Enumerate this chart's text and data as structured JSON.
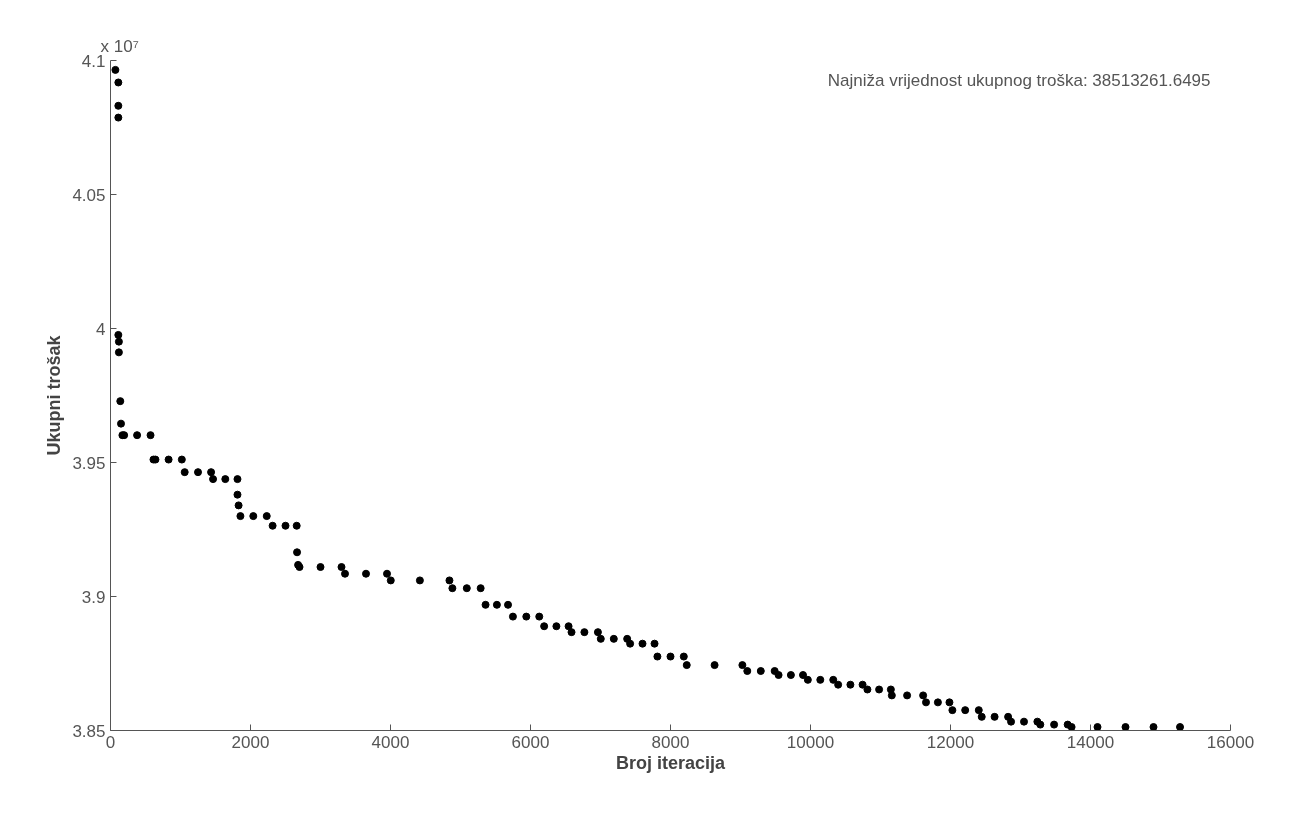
{
  "chart_data": {
    "type": "scatter",
    "xlabel": "Broj iteracija",
    "ylabel": "Ukupni trošak",
    "annotations": [
      "Najniža vrijednost ukupnog troška: 38513261.6495",
      "x 10⁷"
    ],
    "xlim": [
      0,
      16000
    ],
    "ylim": [
      3.85,
      4.1
    ],
    "xticks": [
      0,
      2000,
      4000,
      6000,
      8000,
      10000,
      12000,
      14000,
      16000
    ],
    "yticks": [
      3.85,
      3.9,
      3.95,
      4,
      4.05,
      4.1
    ],
    "grid": false,
    "marker": "circle",
    "series": [
      {
        "color": "#000000",
        "x": [
          70,
          112,
          112,
          112,
          112,
          120,
          120,
          140,
          150,
          170,
          195,
          380,
          572,
          614,
          642,
          830,
          1019,
          1060,
          1250,
          1437,
          1465,
          1640,
          1814,
          1814,
          1830,
          1856,
          2040,
          2232,
          2316,
          2500,
          2660,
          2665,
          2680,
          2700,
          3000,
          3300,
          3350,
          3650,
          3950,
          4004,
          4420,
          4842,
          4884,
          5090,
          5288,
          5358,
          5520,
          5679,
          5749,
          5940,
          6125,
          6195,
          6370,
          6544,
          6586,
          6770,
          6963,
          7004,
          7190,
          7381,
          7423,
          7600,
          7772,
          7813,
          8000,
          8190,
          8232,
          8630,
          9027,
          9097,
          9290,
          9488,
          9544,
          9720,
          9893,
          9962,
          10140,
          10325,
          10395,
          10570,
          10744,
          10813,
          10980,
          11148,
          11162,
          11380,
          11609,
          11650,
          11820,
          11985,
          12027,
          12210,
          12404,
          12446,
          12630,
          12823,
          12865,
          13050,
          13241,
          13283,
          13480,
          13674,
          13730,
          14100,
          14500,
          14900,
          15279
        ],
        "values": [
          4.0965,
          4.0918,
          4.0831,
          4.0787,
          3.9976,
          3.9951,
          3.9911,
          3.9729,
          3.9645,
          3.9602,
          3.9602,
          3.9602,
          3.9602,
          3.9511,
          3.9511,
          3.9511,
          3.9511,
          3.9464,
          3.9464,
          3.9464,
          3.9438,
          3.9438,
          3.9438,
          3.938,
          3.934,
          3.93,
          3.93,
          3.93,
          3.9264,
          3.9264,
          3.9264,
          3.9165,
          3.9118,
          3.911,
          3.911,
          3.911,
          3.9085,
          3.9085,
          3.9085,
          3.906,
          3.906,
          3.906,
          3.9031,
          3.9031,
          3.9031,
          3.8969,
          3.8969,
          3.8969,
          3.8925,
          3.8925,
          3.8925,
          3.8889,
          3.8889,
          3.8889,
          3.8867,
          3.8867,
          3.8867,
          3.8842,
          3.8842,
          3.8842,
          3.8824,
          3.8824,
          3.8824,
          3.8776,
          3.8776,
          3.8776,
          3.8744,
          3.8744,
          3.8744,
          3.8722,
          3.8722,
          3.8722,
          3.8707,
          3.8707,
          3.8707,
          3.8689,
          3.8689,
          3.8689,
          3.8671,
          3.8671,
          3.8671,
          3.8653,
          3.8653,
          3.8653,
          3.8631,
          3.8631,
          3.8631,
          3.8605,
          3.8605,
          3.8605,
          3.8576,
          3.8576,
          3.8576,
          3.8551,
          3.8551,
          3.8551,
          3.8533,
          3.8533,
          3.8533,
          3.8522,
          3.8522,
          3.8522,
          3.8513,
          3.8513,
          3.8513,
          3.8513,
          3.8513
        ]
      }
    ]
  }
}
